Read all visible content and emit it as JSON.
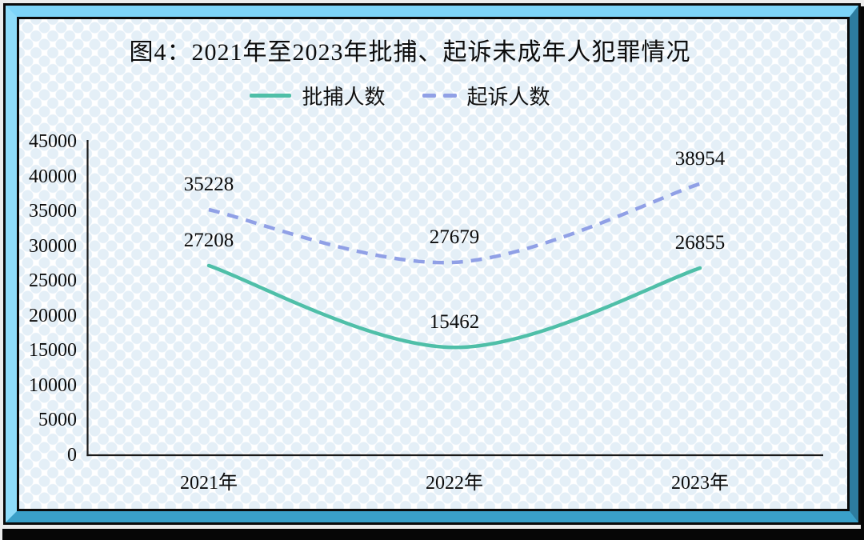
{
  "chart_data": {
    "type": "line",
    "title": "图4：2021年至2023年批捕、起诉未成年人犯罪情况",
    "categories": [
      "2021年",
      "2022年",
      "2023年"
    ],
    "series": [
      {
        "name": "批捕人数",
        "values": [
          27208,
          15462,
          26855
        ],
        "color": "#4fbfa8",
        "style": "solid"
      },
      {
        "name": "起诉人数",
        "values": [
          35228,
          27679,
          38954
        ],
        "color": "#90a0e6",
        "style": "dashed"
      }
    ],
    "ylim": [
      0,
      45000
    ],
    "ytick_interval": 5000,
    "yticks": [
      "45000",
      "40000",
      "35000",
      "30000",
      "25000",
      "20000",
      "15000",
      "10000",
      "5000",
      "0"
    ],
    "grid": false,
    "legend_position": "top-center",
    "axis_color": "#1a1a1a",
    "smoothed_lines": true,
    "data_labels_shown": true
  },
  "frame": {
    "top_color": "#7dd4f8",
    "left_color": "#8edcfa",
    "right_color": "#2d7c9f",
    "bottom_color": "#3aa0c9",
    "shadow_color": "#060606",
    "dot_pattern_color": "#e4eff7"
  }
}
